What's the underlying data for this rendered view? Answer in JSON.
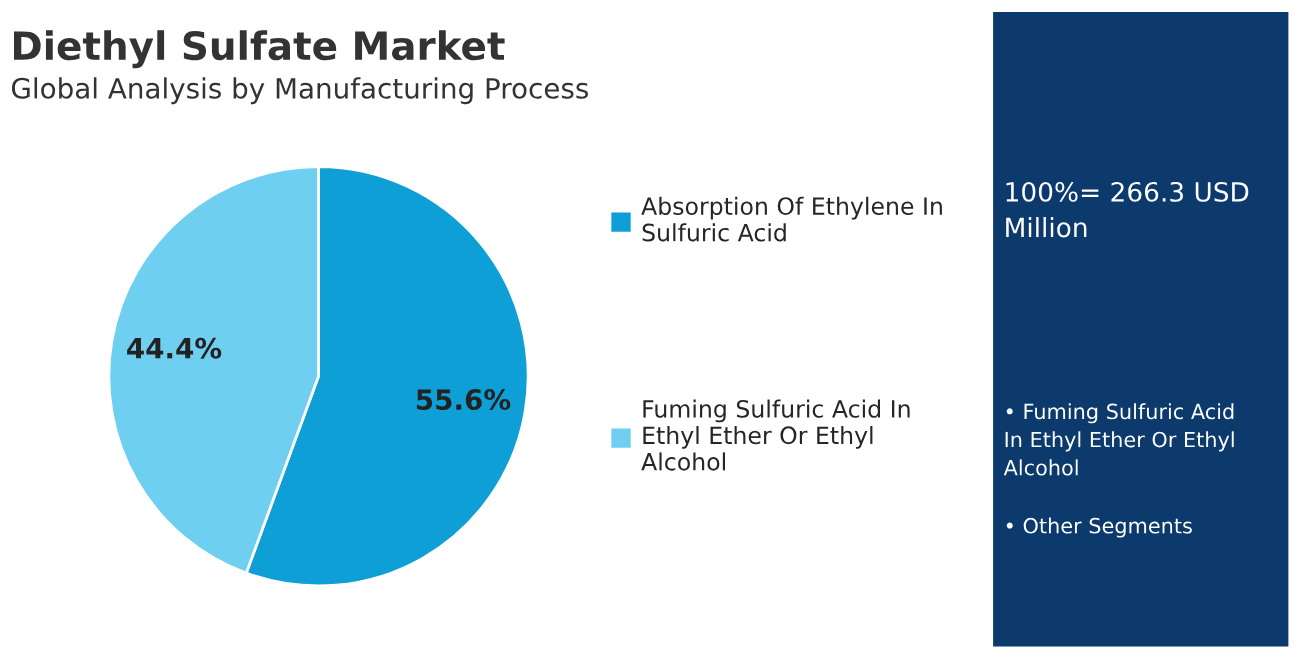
{
  "chart_data": {
    "type": "pie",
    "title": "Diethyl Sulfate Market",
    "subtitle": "Global Analysis by Manufacturing Process",
    "categories": [
      "Absorption Of Ethylene In Sulfuric Acid",
      "Fuming Sulfuric Acid In Ethyl Ether Or Ethyl Alcohol"
    ],
    "values": [
      55.6,
      44.4
    ],
    "colors": [
      "#0e9fd7",
      "#6fcff1"
    ],
    "value_labels": [
      "55.6%",
      "44.4%"
    ],
    "legend": "right",
    "annotations": [
      "100%= 266.3 USD Million",
      "• Fuming Sulfuric Acid In Ethyl Ether Or Ethyl Alcohol",
      "• Other Segments"
    ]
  }
}
